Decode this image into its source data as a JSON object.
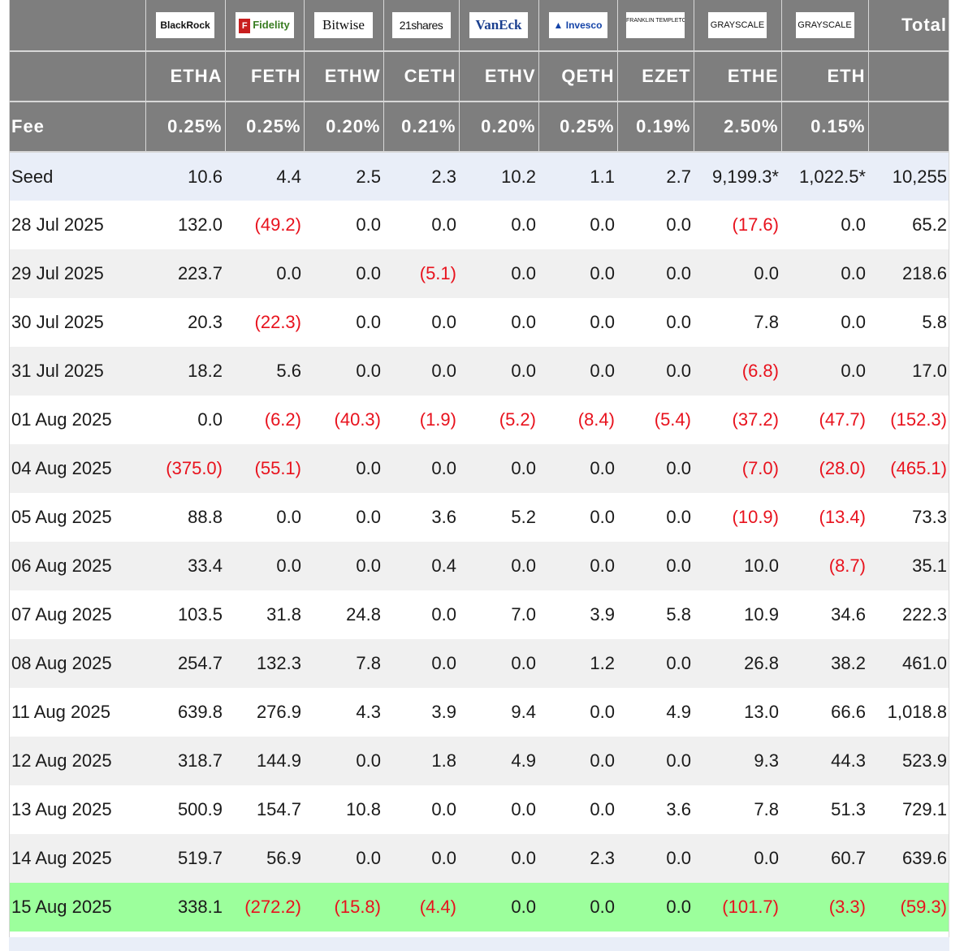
{
  "header": {
    "total_label": "Total",
    "fee_label": "Fee",
    "funds": [
      {
        "issuer_logo": "BlackRock",
        "ticker": "ETHA",
        "fee": "0.25%"
      },
      {
        "issuer_logo": "Fidelity",
        "ticker": "FETH",
        "fee": "0.25%"
      },
      {
        "issuer_logo": "Bitwise",
        "ticker": "ETHW",
        "fee": "0.20%"
      },
      {
        "issuer_logo": "21shares",
        "ticker": "CETH",
        "fee": "0.21%"
      },
      {
        "issuer_logo": "VanEck",
        "ticker": "ETHV",
        "fee": "0.20%"
      },
      {
        "issuer_logo": "Invesco",
        "ticker": "QETH",
        "fee": "0.25%"
      },
      {
        "issuer_logo": "FRANKLIN TEMPLETON",
        "ticker": "EZET",
        "fee": "0.19%"
      },
      {
        "issuer_logo": "GRAYSCALE",
        "ticker": "ETHE",
        "fee": "2.50%"
      },
      {
        "issuer_logo": "GRAYSCALE",
        "ticker": "ETH",
        "fee": "0.15%"
      }
    ]
  },
  "rows": [
    {
      "date": "Seed",
      "values": [
        "10.6",
        "4.4",
        "2.5",
        "2.3",
        "10.2",
        "1.1",
        "2.7",
        "9,199.3*",
        "1,022.5*",
        "10,255"
      ]
    },
    {
      "date": "28 Jul 2025",
      "values": [
        "132.0",
        "(49.2)",
        "0.0",
        "0.0",
        "0.0",
        "0.0",
        "0.0",
        "(17.6)",
        "0.0",
        "65.2"
      ]
    },
    {
      "date": "29 Jul 2025",
      "values": [
        "223.7",
        "0.0",
        "0.0",
        "(5.1)",
        "0.0",
        "0.0",
        "0.0",
        "0.0",
        "0.0",
        "218.6"
      ]
    },
    {
      "date": "30 Jul 2025",
      "values": [
        "20.3",
        "(22.3)",
        "0.0",
        "0.0",
        "0.0",
        "0.0",
        "0.0",
        "7.8",
        "0.0",
        "5.8"
      ]
    },
    {
      "date": "31 Jul 2025",
      "values": [
        "18.2",
        "5.6",
        "0.0",
        "0.0",
        "0.0",
        "0.0",
        "0.0",
        "(6.8)",
        "0.0",
        "17.0"
      ]
    },
    {
      "date": "01 Aug 2025",
      "values": [
        "0.0",
        "(6.2)",
        "(40.3)",
        "(1.9)",
        "(5.2)",
        "(8.4)",
        "(5.4)",
        "(37.2)",
        "(47.7)",
        "(152.3)"
      ]
    },
    {
      "date": "04 Aug 2025",
      "values": [
        "(375.0)",
        "(55.1)",
        "0.0",
        "0.0",
        "0.0",
        "0.0",
        "0.0",
        "(7.0)",
        "(28.0)",
        "(465.1)"
      ]
    },
    {
      "date": "05 Aug 2025",
      "values": [
        "88.8",
        "0.0",
        "0.0",
        "3.6",
        "5.2",
        "0.0",
        "0.0",
        "(10.9)",
        "(13.4)",
        "73.3"
      ]
    },
    {
      "date": "06 Aug 2025",
      "values": [
        "33.4",
        "0.0",
        "0.0",
        "0.4",
        "0.0",
        "0.0",
        "0.0",
        "10.0",
        "(8.7)",
        "35.1"
      ]
    },
    {
      "date": "07 Aug 2025",
      "values": [
        "103.5",
        "31.8",
        "24.8",
        "0.0",
        "7.0",
        "3.9",
        "5.8",
        "10.9",
        "34.6",
        "222.3"
      ]
    },
    {
      "date": "08 Aug 2025",
      "values": [
        "254.7",
        "132.3",
        "7.8",
        "0.0",
        "0.0",
        "1.2",
        "0.0",
        "26.8",
        "38.2",
        "461.0"
      ]
    },
    {
      "date": "11 Aug 2025",
      "values": [
        "639.8",
        "276.9",
        "4.3",
        "3.9",
        "9.4",
        "0.0",
        "4.9",
        "13.0",
        "66.6",
        "1,018.8"
      ]
    },
    {
      "date": "12 Aug 2025",
      "values": [
        "318.7",
        "144.9",
        "0.0",
        "1.8",
        "4.9",
        "0.0",
        "0.0",
        "9.3",
        "44.3",
        "523.9"
      ]
    },
    {
      "date": "13 Aug 2025",
      "values": [
        "500.9",
        "154.7",
        "10.8",
        "0.0",
        "0.0",
        "0.0",
        "3.6",
        "7.8",
        "51.3",
        "729.1"
      ]
    },
    {
      "date": "14 Aug 2025",
      "values": [
        "519.7",
        "56.9",
        "0.0",
        "0.0",
        "0.0",
        "2.3",
        "0.0",
        "0.0",
        "60.7",
        "639.6"
      ]
    },
    {
      "date": "15 Aug 2025",
      "values": [
        "338.1",
        "(272.2)",
        "(15.8)",
        "(4.4)",
        "0.0",
        "0.0",
        "0.0",
        "(101.7)",
        "(3.3)",
        "(59.3)"
      ]
    }
  ],
  "colors": {
    "header_bg": "#7e7e7e",
    "seed_row_bg": "#e9eef8",
    "latest_row_bg": "#9cff9c",
    "stripe_bg": "#f0f0f0",
    "negative_text": "#e8121d"
  }
}
